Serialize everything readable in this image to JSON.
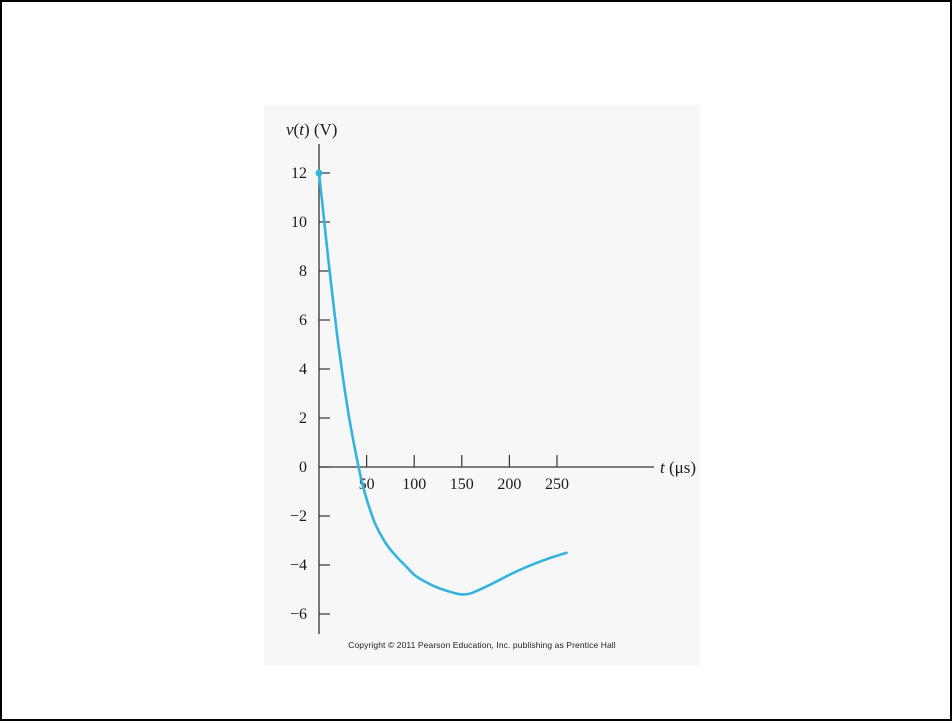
{
  "chart_data": {
    "type": "line",
    "ylabel": "v(t) (V)",
    "xlabel": "t (μs)",
    "xlim": [
      0,
      260
    ],
    "ylim": [
      -6.8,
      12
    ],
    "x_ticks": [
      50,
      100,
      150,
      200,
      250
    ],
    "x_tick_labels": [
      "50",
      "100",
      "150",
      "200",
      "250"
    ],
    "y_ticks": [
      12,
      10,
      8,
      6,
      4,
      2,
      0,
      -2,
      -4,
      -6
    ],
    "y_tick_labels": [
      "12",
      "10",
      "8",
      "6",
      "4",
      "2",
      "0",
      "−2",
      "−4",
      "−6"
    ],
    "series": [
      {
        "x": [
          0,
          5,
          10,
          15,
          20,
          25,
          30,
          35,
          40,
          45,
          50,
          55,
          60,
          70,
          80,
          90,
          100,
          110,
          120,
          130,
          140,
          150,
          160,
          180,
          200,
          220,
          240,
          260
        ],
        "y": [
          12,
          10.2,
          8.4,
          6.7,
          5.1,
          3.7,
          2.4,
          1.3,
          0.3,
          -0.6,
          -1.3,
          -1.9,
          -2.4,
          -3.1,
          -3.6,
          -4.0,
          -4.4,
          -4.65,
          -4.85,
          -5.0,
          -5.12,
          -5.2,
          -5.15,
          -4.8,
          -4.4,
          -4.05,
          -3.75,
          -3.5
        ]
      }
    ],
    "marker": {
      "x": 0,
      "y": 12
    },
    "grid": false,
    "colors": {
      "curve": "#35b3df",
      "axis": "#333333"
    }
  },
  "footer": {
    "copyright": "Copyright © 2011 Pearson Education, Inc. publishing as Prentice Hall"
  }
}
